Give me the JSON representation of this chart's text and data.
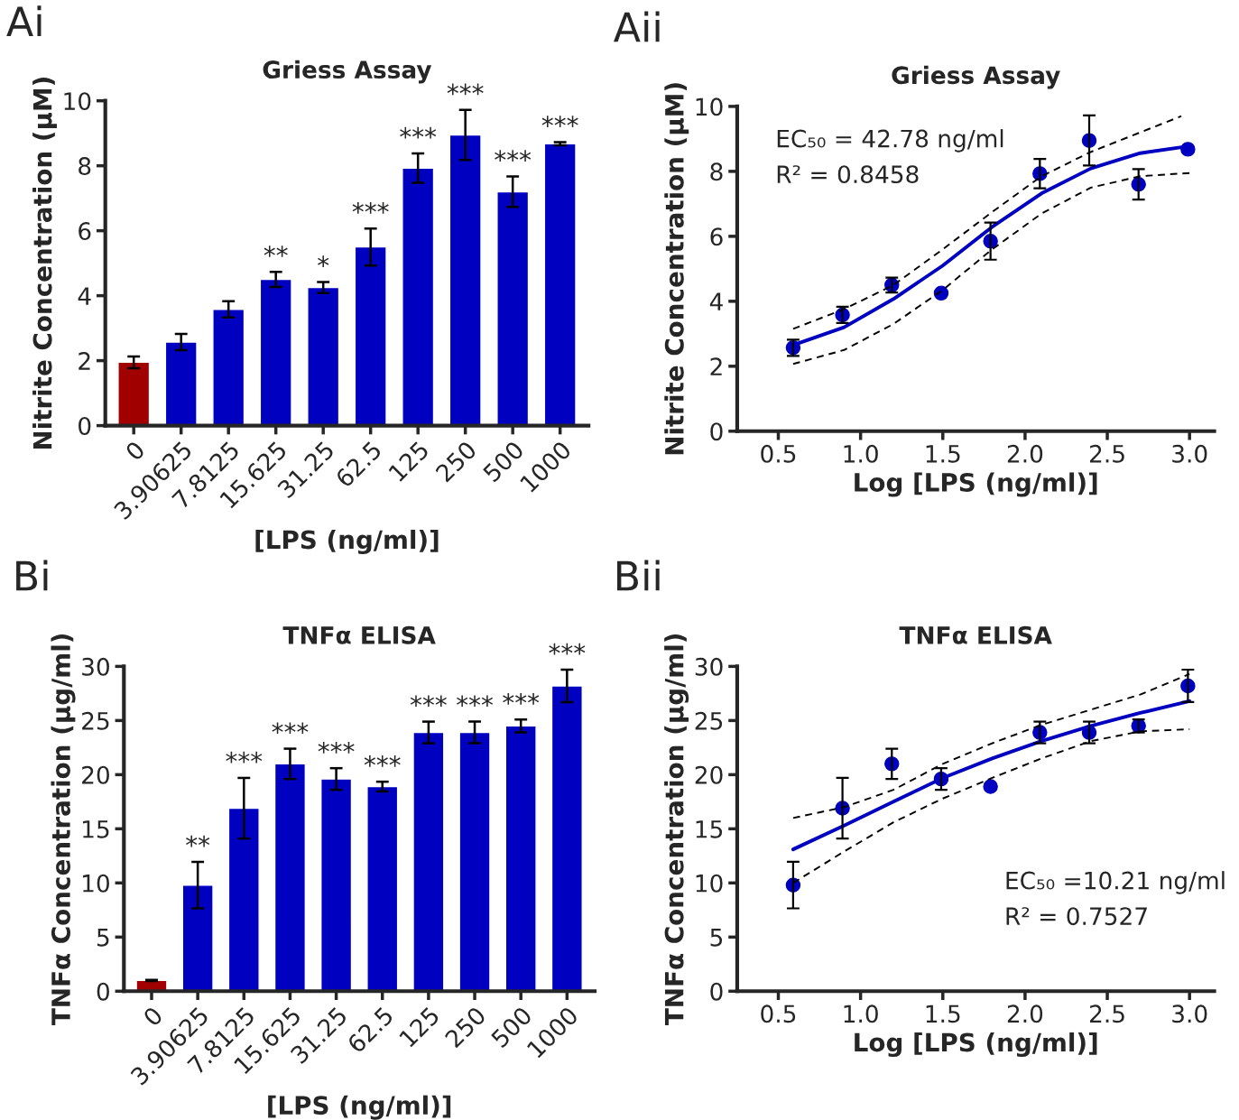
{
  "chart_data": [
    {
      "type": "bar",
      "title": "Griess Assay",
      "xlabel": "[LPS (ng/ml)]",
      "ylabel": "Nitrite Concentration (μM)",
      "categories": [
        "0",
        "3.90625",
        "7.8125",
        "15.625",
        "31.25",
        "62.5",
        "125",
        "250",
        "500",
        "1000"
      ],
      "values": [
        1.95,
        2.57,
        3.58,
        4.5,
        4.25,
        5.5,
        7.93,
        8.95,
        7.2,
        8.68
      ],
      "errors": [
        0.18,
        0.25,
        0.25,
        0.23,
        0.17,
        0.57,
        0.45,
        0.77,
        0.47,
        0.05
      ],
      "colors": [
        "#a00000",
        "#0000c0",
        "#0000c0",
        "#0000c0",
        "#0000c0",
        "#0000c0",
        "#0000c0",
        "#0000c0",
        "#0000c0",
        "#0000c0"
      ],
      "ylim": [
        0,
        10
      ],
      "yticks": [
        0,
        2,
        4,
        6,
        8,
        10
      ],
      "grid": false,
      "annotations": [
        "Ai",
        {
          "text": "**",
          "x": "15.625",
          "y": 4.73
        },
        {
          "text": "*",
          "x": "31.25",
          "y": 4.42
        },
        {
          "text": "***",
          "x": "62.5",
          "y": 6.07
        },
        {
          "text": "***",
          "x": "125",
          "y": 8.38
        },
        {
          "text": "***",
          "x": "250",
          "y": 9.72
        },
        {
          "text": "***",
          "x": "500",
          "y": 7.67
        },
        {
          "text": "***",
          "x": "1000",
          "y": 8.73
        }
      ]
    },
    {
      "type": "scatter",
      "title": "Griess Assay",
      "xlabel": "Log [LPS (ng/ml)]",
      "ylabel": "Nitrite Concentration (μM)",
      "series": [
        {
          "type": "scatter",
          "color": "#0000c0",
          "marker": "circle",
          "x": [
            0.59,
            0.89,
            1.19,
            1.49,
            1.79,
            2.09,
            2.39,
            2.69,
            2.99
          ],
          "values": [
            2.57,
            3.58,
            4.5,
            4.25,
            5.85,
            7.93,
            8.95,
            7.6,
            8.68
          ],
          "errors": [
            0.25,
            0.25,
            0.23,
            null,
            0.57,
            0.45,
            0.77,
            0.47,
            null
          ]
        },
        {
          "type": "line",
          "color": "#0000c0",
          "line_style": "solid",
          "x": [
            0.59,
            0.9,
            1.2,
            1.5,
            1.8,
            2.1,
            2.4,
            2.7,
            3.0
          ],
          "values": [
            2.65,
            3.2,
            4.07,
            5.1,
            6.29,
            7.32,
            8.09,
            8.56,
            8.78
          ]
        },
        {
          "type": "line",
          "color": "#000000",
          "line_style": "dashed",
          "x": [
            0.59,
            0.9,
            1.2,
            1.5,
            1.8,
            2.1,
            2.4,
            2.7,
            2.95
          ],
          "values": [
            3.15,
            3.76,
            4.5,
            5.6,
            6.75,
            7.85,
            8.6,
            9.2,
            9.7
          ]
        },
        {
          "type": "line",
          "color": "#000000",
          "line_style": "dashed",
          "x": [
            0.59,
            0.9,
            1.2,
            1.5,
            1.8,
            2.1,
            2.4,
            2.7,
            3.0
          ],
          "values": [
            2.07,
            2.5,
            3.3,
            4.35,
            5.6,
            6.7,
            7.5,
            7.85,
            7.95
          ]
        }
      ],
      "xlim": [
        0.25,
        3.15
      ],
      "xticks": [
        {
          "value": 0.5,
          "label": "0.5"
        },
        {
          "value": 1.0,
          "label": "1.0"
        },
        {
          "value": 1.5,
          "label": "1.5"
        },
        {
          "value": 2.0,
          "label": "2.0"
        },
        {
          "value": 2.5,
          "label": "2.5"
        },
        {
          "value": 3.0,
          "label": "3.0"
        }
      ],
      "ylim": [
        0,
        10
      ],
      "yticks": [
        0,
        2,
        4,
        6,
        8,
        10
      ],
      "grid": false,
      "annotations": [
        "Aii",
        "EC₅₀ = 42.78 ng/ml",
        "R² = 0.8458"
      ]
    },
    {
      "type": "bar",
      "title": "TNFα ELISA",
      "xlabel": "[LPS (ng/ml)]",
      "ylabel": "TNFα Concentration (μg/ml)",
      "categories": [
        "0",
        "3.90625",
        "7.8125",
        "15.625",
        "31.25",
        "62.5",
        "125",
        "250",
        "500",
        "1000"
      ],
      "values": [
        1.0,
        9.8,
        16.9,
        21.0,
        19.6,
        18.9,
        23.9,
        23.9,
        24.5,
        28.2
      ],
      "errors": [
        0.05,
        2.15,
        2.8,
        1.4,
        1.0,
        0.45,
        1.0,
        1.0,
        0.6,
        1.5
      ],
      "colors": [
        "#a00000",
        "#0000c0",
        "#0000c0",
        "#0000c0",
        "#0000c0",
        "#0000c0",
        "#0000c0",
        "#0000c0",
        "#0000c0",
        "#0000c0"
      ],
      "ylim": [
        0,
        30
      ],
      "yticks": [
        0,
        5,
        10,
        15,
        20,
        25,
        30
      ],
      "grid": false,
      "annotations": [
        "Bi",
        {
          "text": "**",
          "x": "3.90625",
          "y": 11.95
        },
        {
          "text": "***",
          "x": "7.8125",
          "y": 19.7
        },
        {
          "text": "***",
          "x": "15.625",
          "y": 22.4
        },
        {
          "text": "***",
          "x": "31.25",
          "y": 20.6
        },
        {
          "text": "***",
          "x": "62.5",
          "y": 19.35
        },
        {
          "text": "***",
          "x": "125",
          "y": 24.9
        },
        {
          "text": "***",
          "x": "250",
          "y": 24.9
        },
        {
          "text": "***",
          "x": "500",
          "y": 25.1
        },
        {
          "text": "***",
          "x": "1000",
          "y": 29.7
        }
      ]
    },
    {
      "type": "scatter",
      "title": "TNFα ELISA",
      "xlabel": "Log [LPS (ng/ml)]",
      "ylabel": "TNFα Concentration (μg/ml)",
      "series": [
        {
          "type": "scatter",
          "color": "#0000c0",
          "marker": "circle",
          "x": [
            0.59,
            0.89,
            1.19,
            1.49,
            1.79,
            2.09,
            2.39,
            2.69,
            2.99
          ],
          "values": [
            9.8,
            16.9,
            21.0,
            19.6,
            18.9,
            23.9,
            23.9,
            24.5,
            28.2
          ],
          "errors": [
            2.15,
            2.8,
            1.4,
            1.0,
            null,
            1.0,
            1.0,
            0.6,
            1.5
          ]
        },
        {
          "type": "line",
          "color": "#0000c0",
          "line_style": "solid",
          "x": [
            0.59,
            0.9,
            1.2,
            1.5,
            1.8,
            2.1,
            2.4,
            2.7,
            3.0
          ],
          "values": [
            13.1,
            15.3,
            17.5,
            19.7,
            21.5,
            23.1,
            24.5,
            25.7,
            26.8
          ]
        },
        {
          "type": "line",
          "color": "#000000",
          "line_style": "dashed",
          "x": [
            0.59,
            0.9,
            1.2,
            1.5,
            1.8,
            2.1,
            2.4,
            2.7,
            3.0
          ],
          "values": [
            16.0,
            17.0,
            18.6,
            21.0,
            22.9,
            24.6,
            26.0,
            27.4,
            29.3
          ]
        },
        {
          "type": "line",
          "color": "#000000",
          "line_style": "dashed",
          "x": [
            0.59,
            0.9,
            1.2,
            1.5,
            1.8,
            2.1,
            2.4,
            2.7,
            3.0
          ],
          "values": [
            10.0,
            12.9,
            15.6,
            17.8,
            19.7,
            21.5,
            23.1,
            24.0,
            24.2
          ]
        }
      ],
      "xlim": [
        0.25,
        3.15
      ],
      "xticks": [
        {
          "value": 0.5,
          "label": "0.5"
        },
        {
          "value": 1.0,
          "label": "1.0"
        },
        {
          "value": 1.5,
          "label": "1.5"
        },
        {
          "value": 2.0,
          "label": "2.0"
        },
        {
          "value": 2.5,
          "label": "2.5"
        },
        {
          "value": 3.0,
          "label": "3.0"
        }
      ],
      "ylim": [
        0,
        30
      ],
      "yticks": [
        0,
        5,
        10,
        15,
        20,
        25,
        30
      ],
      "grid": false,
      "annotations": [
        "Bii",
        "EC₅₀ =10.21 ng/ml",
        "R² = 0.7527"
      ]
    }
  ]
}
